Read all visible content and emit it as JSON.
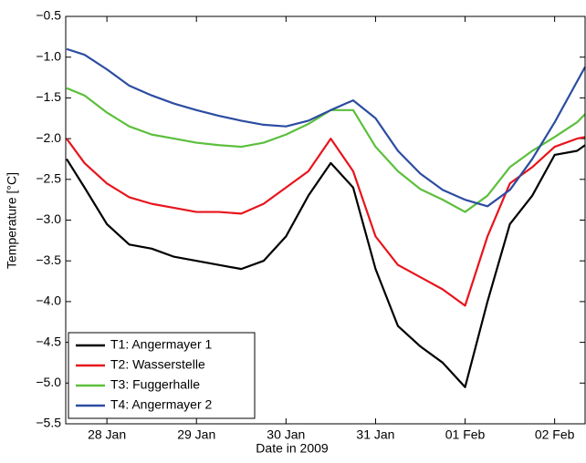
{
  "chart_data": {
    "type": "line",
    "x_label": "Date in 2009",
    "y_label": "Temperature [°C]",
    "x": [
      27.55,
      27.75,
      28,
      28.25,
      28.5,
      28.75,
      29,
      29.25,
      29.5,
      29.75,
      30,
      30.25,
      30.5,
      30.75,
      31,
      31.25,
      31.5,
      31.75,
      32,
      32.25,
      32.5,
      32.75,
      33,
      33.25,
      33.34
    ],
    "series": [
      {
        "name": "T1: Angermayer 1",
        "color": "#000000",
        "values": [
          -2.25,
          -2.6,
          -3.05,
          -3.3,
          -3.35,
          -3.45,
          -3.5,
          -3.55,
          -3.6,
          -3.5,
          -3.2,
          -2.7,
          -2.3,
          -2.6,
          -3.6,
          -4.3,
          -4.55,
          -4.75,
          -5.05,
          -4.0,
          -3.05,
          -2.7,
          -2.2,
          -2.15,
          -2.08
        ]
      },
      {
        "name": "T2: Wasserstelle",
        "color": "#e8141c",
        "values": [
          -2.0,
          -2.3,
          -2.55,
          -2.72,
          -2.8,
          -2.85,
          -2.9,
          -2.9,
          -2.92,
          -2.8,
          -2.6,
          -2.4,
          -2.0,
          -2.4,
          -3.2,
          -3.55,
          -3.7,
          -3.85,
          -4.05,
          -3.2,
          -2.55,
          -2.35,
          -2.1,
          -2.0,
          -1.98
        ]
      },
      {
        "name": "T3: Fuggerhalle",
        "color": "#5cbf3c",
        "values": [
          -1.38,
          -1.47,
          -1.68,
          -1.85,
          -1.95,
          -2.0,
          -2.05,
          -2.08,
          -2.1,
          -2.05,
          -1.95,
          -1.82,
          -1.65,
          -1.65,
          -2.1,
          -2.4,
          -2.62,
          -2.75,
          -2.9,
          -2.7,
          -2.35,
          -2.15,
          -1.98,
          -1.8,
          -1.7
        ]
      },
      {
        "name": "T4: Angermayer 2",
        "color": "#2b4ca0",
        "values": [
          -0.9,
          -0.97,
          -1.15,
          -1.35,
          -1.47,
          -1.57,
          -1.65,
          -1.72,
          -1.78,
          -1.83,
          -1.85,
          -1.78,
          -1.65,
          -1.53,
          -1.75,
          -2.15,
          -2.43,
          -2.63,
          -2.75,
          -2.83,
          -2.63,
          -2.25,
          -1.8,
          -1.3,
          -1.12
        ]
      }
    ],
    "xlim": [
      27.54,
      33.34
    ],
    "xticks": [
      {
        "value": 28,
        "label": "28 Jan"
      },
      {
        "value": 29,
        "label": "29 Jan"
      },
      {
        "value": 30,
        "label": "30 Jan"
      },
      {
        "value": 31,
        "label": "31 Jan"
      },
      {
        "value": 32,
        "label": "01 Feb"
      },
      {
        "value": 33,
        "label": "02 Feb"
      }
    ],
    "ylim": [
      -5.5,
      -0.5
    ],
    "yticks": [
      {
        "value": -5.5,
        "label": "−5.5"
      },
      {
        "value": -5.0,
        "label": "−5.0"
      },
      {
        "value": -4.5,
        "label": "−4.5"
      },
      {
        "value": -4.0,
        "label": "−4.0"
      },
      {
        "value": -3.5,
        "label": "−3.5"
      },
      {
        "value": -3.0,
        "label": "−3.0"
      },
      {
        "value": -2.5,
        "label": "−2.5"
      },
      {
        "value": -2.0,
        "label": "−2.0"
      },
      {
        "value": -1.5,
        "label": "−1.5"
      },
      {
        "value": -1.0,
        "label": "−1.0"
      },
      {
        "value": -0.5,
        "label": "−0.5"
      }
    ],
    "grid": false,
    "legend": "lower-left"
  }
}
